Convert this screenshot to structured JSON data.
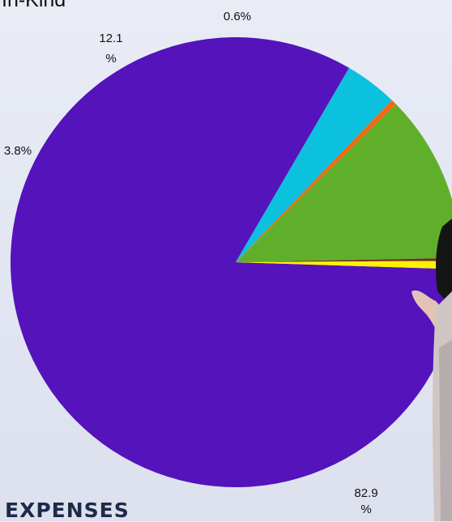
{
  "category_label": "In-Kind",
  "section_label": "EXPENSES",
  "chart_data": {
    "type": "pie",
    "slices": [
      {
        "value": 82.9,
        "label_lines": [
          "82.9",
          "%"
        ],
        "color": "#5413bb"
      },
      {
        "value": 3.8,
        "label_lines": [
          "3.8%"
        ],
        "color": "#0bc1de"
      },
      {
        "value": 0.4,
        "label_lines": [],
        "color": "#f26a10"
      },
      {
        "value": 12.1,
        "label_lines": [
          "12.1",
          "%"
        ],
        "color": "#5faf2b"
      },
      {
        "value": 0.2,
        "label_lines": [],
        "color": "#7a2a1e"
      },
      {
        "value": 0.6,
        "label_lines": [
          "0.6%"
        ],
        "color": "#fff200"
      }
    ]
  }
}
